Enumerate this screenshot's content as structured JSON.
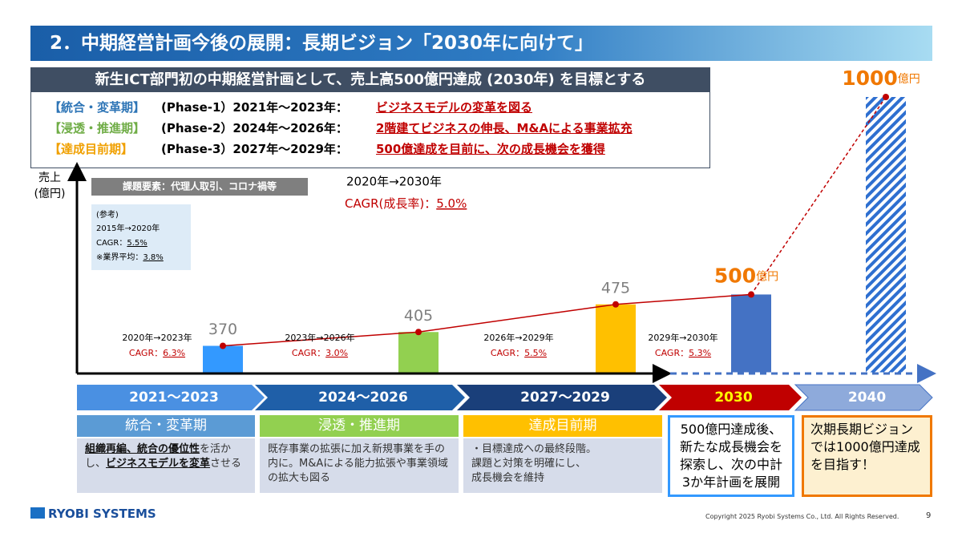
{
  "header": {
    "title": "2．中期経営計画今後の展開：長期ビジョン「2030年に向けて」"
  },
  "summary": {
    "title": "新生ICT部門初の中期経営計画として、売上高500億円達成 (2030年) を目標とする",
    "phases": [
      {
        "tag": "【統合・変革期】",
        "color": "#2e75b6",
        "period": "(Phase-1）2021年～2023年：",
        "goal": "ビジネスモデルの変革を図る"
      },
      {
        "tag": "【浸透・推進期】",
        "color": "#70ad47",
        "period": "(Phase-2）2024年～2026年：",
        "goal": "2階建てビジネスの伸長、M&Aによる事業拡充"
      },
      {
        "tag": "【達成目前期】",
        "color": "#f0a000",
        "period": "(Phase-3）2027年～2029年：",
        "goal": "500億達成を目前に、次の成長機会を獲得"
      }
    ]
  },
  "chart_data": {
    "type": "bar",
    "y_label": [
      "売上",
      "(億円)"
    ],
    "categories": [
      null,
      null,
      null,
      null,
      null
    ],
    "values": [
      370,
      405,
      475,
      500,
      1000
    ],
    "colors": [
      "#3399ff",
      "#92d050",
      "#ffc000",
      "#4472c4",
      "#2e6fd0"
    ],
    "hatched": [
      false,
      false,
      false,
      false,
      true
    ],
    "highlight": [
      false,
      false,
      false,
      true,
      true
    ],
    "unit": "億円",
    "ylim": [
      300,
      1000
    ],
    "line_color": "#c00000",
    "cagr": [
      {
        "period": "2020年→2023年",
        "label": "CAGR：",
        "value": "6.3%"
      },
      {
        "period": "2023年→2026年",
        "label": "CAGR：",
        "value": "3.0%"
      },
      {
        "period": "2026年→2029年",
        "label": "CAGR：",
        "value": "5.5%"
      },
      {
        "period": "2029年→2030年",
        "label": "CAGR：",
        "value": "5.3%"
      }
    ],
    "overall": {
      "period": "2020年→2030年",
      "label": "CAGR(成長率)：",
      "value": "5.0%"
    },
    "issues": "課題要素：代理人取引、コロナ禍等",
    "reference": {
      "title": "(参考)",
      "period": "2015年→2020年",
      "label": "CAGR：",
      "value": "5.5%",
      "avg_label": "※業界平均：",
      "avg_value": "3.8%"
    }
  },
  "timeline": [
    "2021～2023",
    "2024～2026",
    "2027～2029",
    "2030",
    "2040"
  ],
  "cards": [
    {
      "title": "統合・変革期",
      "text": [
        {
          "t": "組織再編、統合の優位性",
          "em": true
        },
        {
          "t": "を活かし、",
          "em": false
        },
        {
          "t": "ビジネスモデルを変革",
          "em": true
        },
        {
          "t": "させる",
          "em": false
        }
      ]
    },
    {
      "title": "浸透・推進期",
      "text": [
        {
          "t": "既存事業の拡張に加え新規事業を手の内に。M&Aによる能力拡張や事業領域の拡大も図る",
          "em": false
        }
      ]
    },
    {
      "title": "達成目前期",
      "text": [
        {
          "t": "・目標達成への最終段階。",
          "em": false
        },
        {
          "t": "課題と対策を明確にし、",
          "em": false
        },
        {
          "t": "成長機会を維持",
          "em": false
        }
      ]
    }
  ],
  "notes": [
    "500億円達成後、新たな成長機会を探索し、次の中計3か年計画を展開",
    "次期長期ビジョンでは1000億円達成を目指す！"
  ],
  "footer": {
    "logo": "RYOBI SYSTEMS",
    "copyright": "Copyright 2025 Ryobi Systems Co., Ltd. All Rights Reserved.",
    "page": "9"
  }
}
